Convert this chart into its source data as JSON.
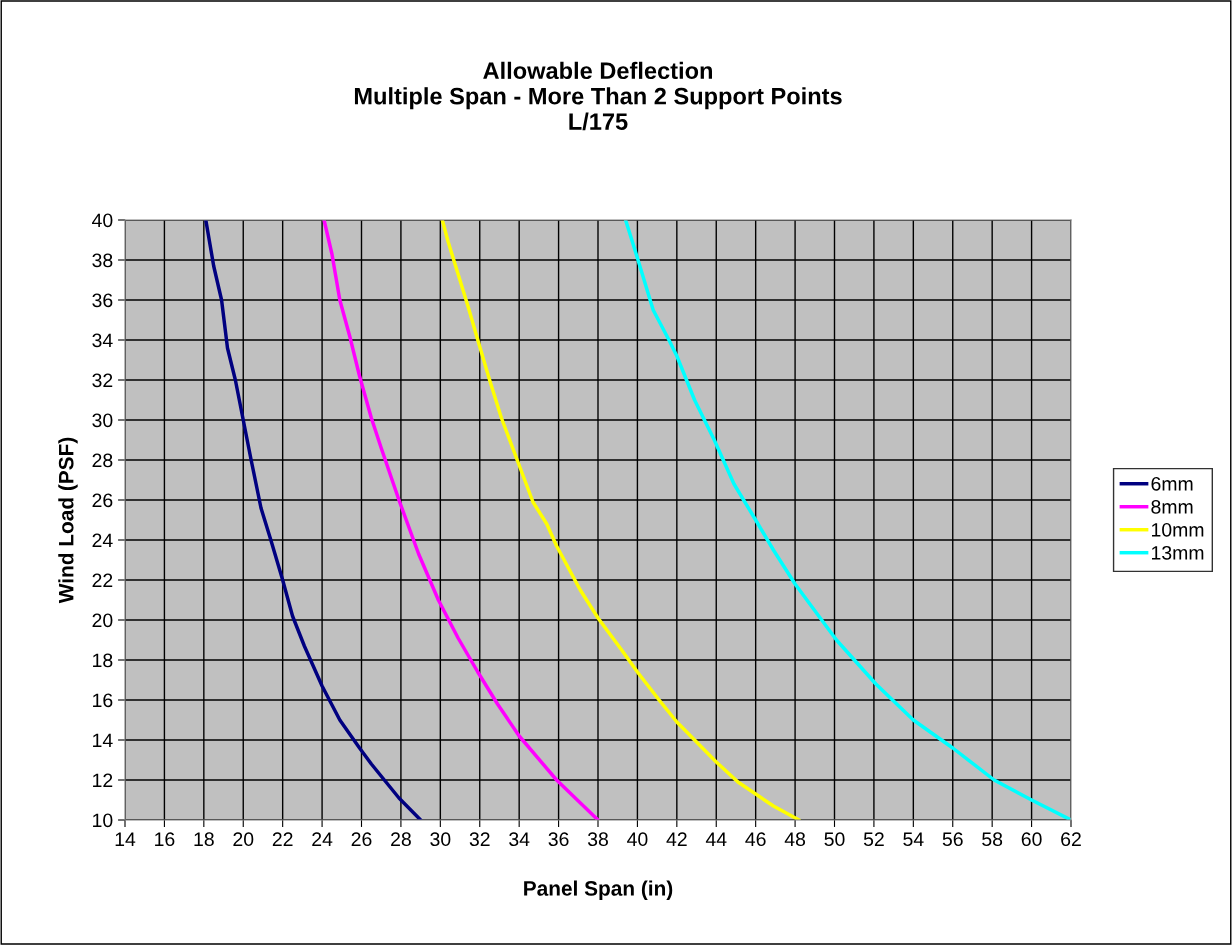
{
  "chart_data": {
    "type": "line",
    "title": "Allowable Deflection\nMultiple Span - More Than 2 Support Points\nL/175",
    "xlabel": "Panel Span (in)",
    "ylabel": "Wind Load (PSF)",
    "xlim": [
      14,
      62
    ],
    "xticks": [
      14,
      16,
      18,
      20,
      22,
      24,
      26,
      28,
      30,
      32,
      34,
      36,
      38,
      40,
      42,
      44,
      46,
      48,
      50,
      52,
      54,
      56,
      58,
      60,
      62
    ],
    "ylim": [
      10,
      40
    ],
    "yticks": [
      10,
      12,
      14,
      16,
      18,
      20,
      22,
      24,
      26,
      28,
      30,
      32,
      34,
      36,
      38,
      40
    ],
    "grid": true,
    "legend": "right",
    "marker": "none",
    "line_style": "solid",
    "series": [
      {
        "name": "6mm",
        "color": "#000080",
        "x": [
          18.1,
          18.5,
          18.9,
          19.2,
          19.6,
          20,
          20.4,
          20.9,
          21.4,
          22,
          22.5,
          23.1,
          24,
          24.9,
          25.9,
          26.5,
          27.9,
          29
        ],
        "values": [
          40,
          37.7,
          36,
          33.6,
          32,
          30,
          28,
          25.6,
          24,
          22,
          20.2,
          18.7,
          16.7,
          15,
          13.6,
          12.8,
          11.1,
          10
        ]
      },
      {
        "name": "8mm",
        "color": "#ff00ff",
        "x": [
          24.1,
          24.5,
          24.9,
          25.4,
          25.9,
          26.5,
          27,
          27.9,
          28.9,
          29.9,
          30.9,
          31.9,
          32.9,
          34,
          35.9,
          38
        ],
        "values": [
          40,
          38.3,
          36,
          34.2,
          32.2,
          30.1,
          28.6,
          26,
          23.3,
          21,
          19.1,
          17.4,
          15.8,
          14.2,
          12,
          10
        ]
      },
      {
        "name": "10mm",
        "color": "#ffff00",
        "x": [
          30.1,
          30.4,
          30.9,
          31.4,
          31.9,
          32.5,
          33.1,
          33.9,
          34.7,
          35.4,
          35.9,
          37.1,
          38,
          39.2,
          40,
          41.1,
          42,
          43,
          44,
          45.1,
          46.9,
          48.2
        ],
        "values": [
          40,
          38.9,
          37.3,
          35.7,
          34,
          32,
          30.1,
          28,
          25.9,
          24.8,
          23.7,
          21.5,
          20.1,
          18.5,
          17.4,
          16,
          14.9,
          13.9,
          12.9,
          11.9,
          10.7,
          10
        ]
      },
      {
        "name": "13mm",
        "color": "#00ffff",
        "x": [
          39.4,
          40,
          40.8,
          41.6,
          42,
          42.9,
          43.9,
          44.9,
          46,
          46.9,
          48,
          49.2,
          50.1,
          52.1,
          54,
          56,
          58.1,
          60,
          62
        ],
        "values": [
          40,
          38.1,
          35.5,
          34,
          33.2,
          31,
          29,
          26.8,
          25,
          23.5,
          21.8,
          20.2,
          19,
          16.8,
          15,
          13.6,
          12,
          11,
          10
        ]
      }
    ]
  }
}
